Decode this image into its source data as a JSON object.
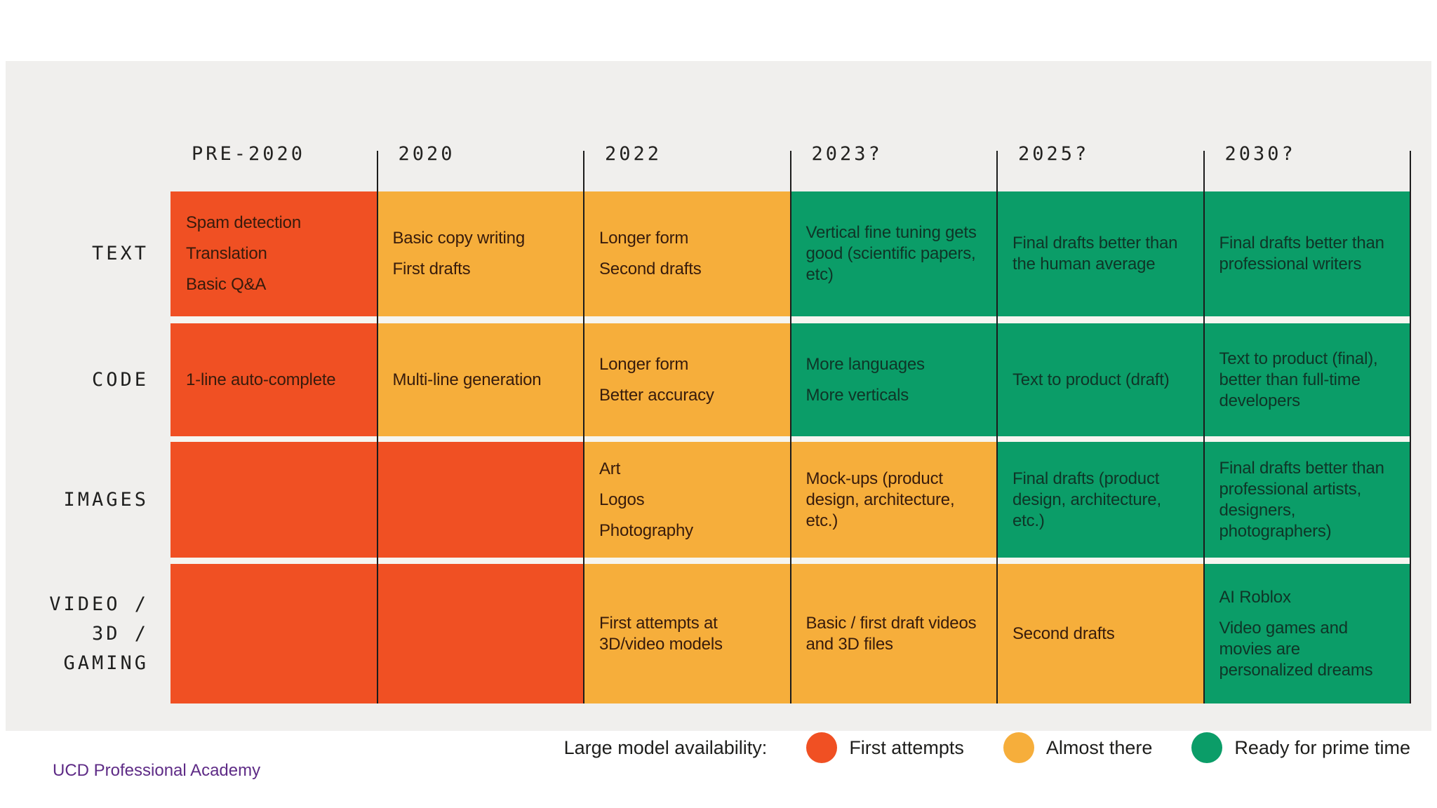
{
  "columns": [
    "PRE-2020",
    "2020",
    "2022",
    "2023?",
    "2025?",
    "2030?"
  ],
  "rows": [
    {
      "label": "TEXT",
      "cells": [
        {
          "status": "first",
          "items": [
            "Spam detection",
            "Translation",
            "Basic Q&A"
          ]
        },
        {
          "status": "almost",
          "items": [
            "Basic copy writing",
            "First drafts"
          ]
        },
        {
          "status": "almost",
          "items": [
            "Longer form",
            "Second drafts"
          ]
        },
        {
          "status": "ready",
          "items": [
            "Vertical fine tuning gets good (scientific papers, etc)"
          ]
        },
        {
          "status": "ready",
          "items": [
            "Final drafts better than the human average"
          ]
        },
        {
          "status": "ready",
          "items": [
            "Final drafts better than professional writers"
          ]
        }
      ]
    },
    {
      "label": "CODE",
      "cells": [
        {
          "status": "first",
          "items": [
            "1-line auto-complete"
          ]
        },
        {
          "status": "almost",
          "items": [
            "Multi-line generation"
          ]
        },
        {
          "status": "almost",
          "items": [
            "Longer form",
            "Better accuracy"
          ]
        },
        {
          "status": "ready",
          "items": [
            "More languages",
            "More verticals"
          ]
        },
        {
          "status": "ready",
          "items": [
            "Text to product (draft)"
          ]
        },
        {
          "status": "ready",
          "items": [
            "Text to product (final), better than full-time developers"
          ]
        }
      ]
    },
    {
      "label": "IMAGES",
      "cells": [
        {
          "status": "first",
          "items": []
        },
        {
          "status": "first",
          "items": []
        },
        {
          "status": "almost",
          "items": [
            "Art",
            "Logos",
            "Photography"
          ]
        },
        {
          "status": "almost",
          "items": [
            "Mock-ups (product design, architecture, etc.)"
          ]
        },
        {
          "status": "ready",
          "items": [
            "Final drafts (product design, architecture, etc.)"
          ]
        },
        {
          "status": "ready",
          "items": [
            "Final drafts better than professional artists, designers, photographers)"
          ]
        }
      ]
    },
    {
      "label": "VIDEO /\n3D /\nGAMING",
      "cells": [
        {
          "status": "first",
          "items": []
        },
        {
          "status": "first",
          "items": []
        },
        {
          "status": "almost",
          "items": [
            "First attempts at 3D/video models"
          ]
        },
        {
          "status": "almost",
          "items": [
            "Basic / first draft videos and 3D files"
          ]
        },
        {
          "status": "almost",
          "items": [
            "Second drafts"
          ]
        },
        {
          "status": "ready",
          "items": [
            "AI Roblox",
            "Video games and movies are personalized dreams"
          ]
        }
      ]
    }
  ],
  "legend": {
    "title": "Large model availability:",
    "items": [
      {
        "status": "first",
        "label": "First attempts"
      },
      {
        "status": "almost",
        "label": "Almost there"
      },
      {
        "status": "ready",
        "label": "Ready for prime time"
      }
    ]
  },
  "footer": {
    "link_text": "UCD Professional Academy"
  },
  "colors": {
    "page_background": "#FFFFFF",
    "panel_background": "#F0EFED",
    "row_gap": "#F6F5F0",
    "grid_line": "#1C1C1C",
    "status": {
      "first": "#F05023",
      "almost": "#F6AE3B",
      "ready": "#0B9D68"
    },
    "cell_text_on_warm": "#371B0C",
    "cell_text_on_green": "#0F3527",
    "header_text": "#232220",
    "legend_text": "#1E1E1C",
    "footer_link": "#5E2B86"
  }
}
